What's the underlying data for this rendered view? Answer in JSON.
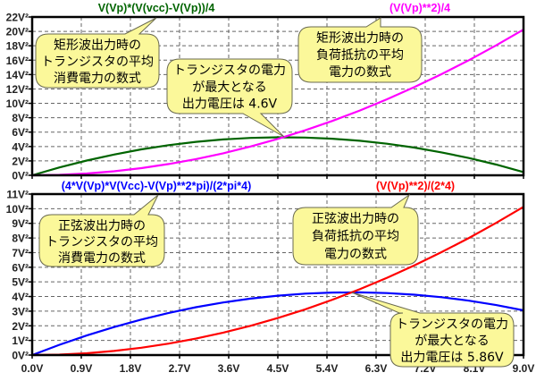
{
  "chart_data": [
    {
      "type": "line",
      "x": [
        0,
        0.5,
        1,
        1.5,
        2,
        2.5,
        3,
        3.5,
        4,
        4.5,
        5,
        5.5,
        6,
        6.5,
        7,
        7.5,
        8,
        8.5,
        9
      ],
      "xlim": [
        0,
        9
      ],
      "ylim": [
        0,
        22
      ],
      "xticks": [
        "0.0V",
        "0.9V",
        "1.8V",
        "2.7V",
        "3.6V",
        "4.5V",
        "5.4V",
        "6.3V",
        "7.2V",
        "8.1V",
        "9.0V"
      ],
      "yticks": [
        "0V²",
        "2V²",
        "4V²",
        "6V²",
        "8V²",
        "10V²",
        "12V²",
        "14V²",
        "16V²",
        "18V²",
        "20V²",
        "22V²"
      ],
      "grid": true,
      "series": [
        {
          "name": "V(Vp)*(V(vcc)-V(Vp))/4",
          "color": "#006400",
          "values": [
            0,
            1.088,
            2.05,
            2.888,
            3.6,
            4.188,
            4.65,
            4.988,
            5.2,
            5.288,
            5.25,
            5.088,
            4.8,
            4.388,
            3.85,
            3.188,
            2.4,
            1.488,
            0.45
          ]
        },
        {
          "name": "(V(Vp)**2)/4",
          "color": "#ff00ff",
          "values": [
            0,
            0.063,
            0.25,
            0.563,
            1,
            1.563,
            2.25,
            3.063,
            4,
            5.063,
            6.25,
            7.563,
            9,
            10.563,
            12.25,
            14.063,
            16,
            18.063,
            20.25
          ]
        }
      ],
      "annotations": [
        {
          "lines": [
            "矩形波出力時の",
            "トランジスタの平均",
            "消費電力の数式"
          ]
        },
        {
          "lines": [
            "トランジスタの電力",
            "が最大となる",
            "出力電圧は 4.6V"
          ]
        },
        {
          "lines": [
            "矩形波出力時の",
            "負荷抵抗の平均",
            "電力の数式"
          ]
        }
      ]
    },
    {
      "type": "line",
      "x": [
        0,
        0.5,
        1,
        1.5,
        2,
        2.5,
        3,
        3.5,
        4,
        4.5,
        5,
        5.5,
        6,
        6.5,
        7,
        7.5,
        8,
        8.5,
        9
      ],
      "xlim": [
        0,
        9
      ],
      "ylim": [
        0,
        11
      ],
      "xticks": [
        "0.0V",
        "0.9V",
        "1.8V",
        "2.7V",
        "3.6V",
        "4.5V",
        "5.4V",
        "6.3V",
        "7.2V",
        "8.1V",
        "9.0V"
      ],
      "yticks": [
        "0V²",
        "1V²",
        "2V²",
        "3V²",
        "4V²",
        "5V²",
        "6V²",
        "7V²",
        "8V²",
        "9V²",
        "10V²",
        "11V²"
      ],
      "grid": true,
      "series": [
        {
          "name": "(4*V(Vp)*V(Vcc)-V(Vp)**2*pi)/(2*pi*4)",
          "color": "#0000ff",
          "values": [
            0,
            0.701,
            1.339,
            1.915,
            2.428,
            2.879,
            3.268,
            3.593,
            3.857,
            4.058,
            4.196,
            4.272,
            4.285,
            4.236,
            4.125,
            3.951,
            3.714,
            3.415,
            3.053
          ]
        },
        {
          "name": "(V(Vp)**2)/(2*4)",
          "color": "#ff0000",
          "values": [
            0,
            0.031,
            0.125,
            0.281,
            0.5,
            0.781,
            1.125,
            1.531,
            2,
            2.531,
            3.125,
            3.781,
            4.5,
            5.281,
            6.125,
            7.031,
            8,
            9.031,
            10.125
          ]
        }
      ],
      "annotations": [
        {
          "lines": [
            "正弦波出力時の",
            "トランジスタの平均",
            "消費電力の数式"
          ]
        },
        {
          "lines": [
            "正弦波出力時の",
            "負荷抵抗の平均",
            "電力の数式"
          ]
        },
        {
          "lines": [
            "トランジスタの電力",
            "が最大となる",
            "出力電圧は 5.86V"
          ]
        }
      ]
    }
  ]
}
